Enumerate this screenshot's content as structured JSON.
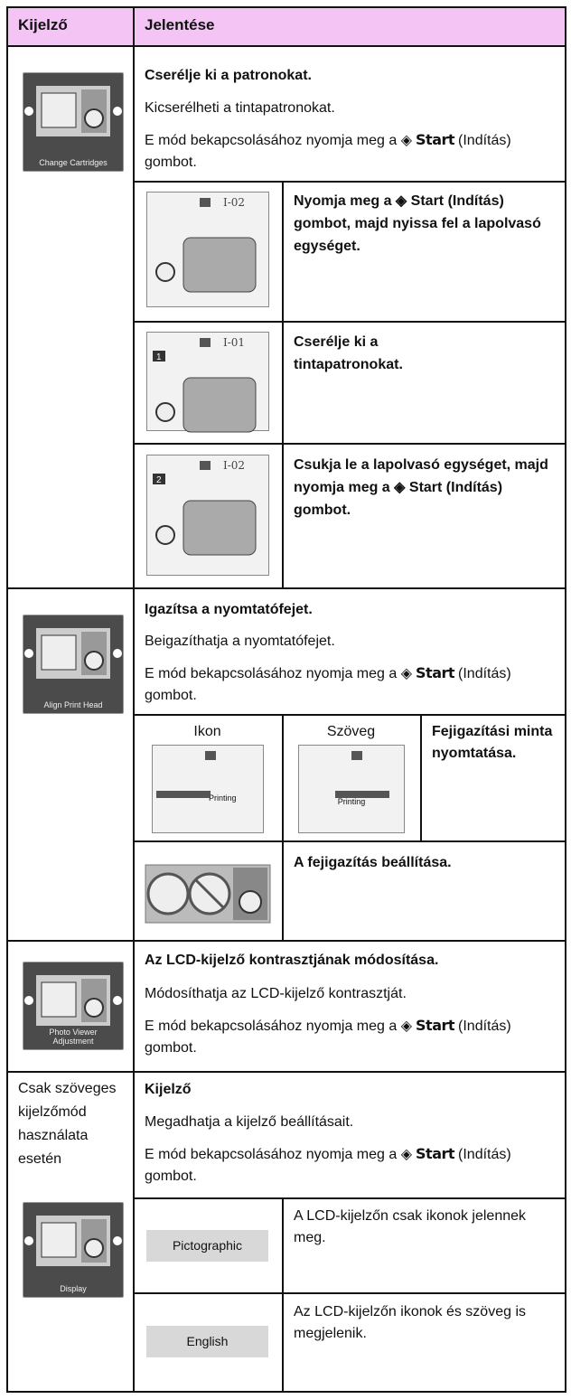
{
  "header": {
    "col1": "Kijelző",
    "col2": "Jelentése"
  },
  "sections": [
    {
      "icon_label": "Change Cartridges",
      "title": "Cserélje ki a patronokat.",
      "description": "Kicserélheti a tintapatronokat.",
      "instruction": {
        "before": "E mód bekapcsolásához nyomja meg a ◈",
        "button": "Start",
        "after": "(Indítás) gombot."
      },
      "steps": [
        {
          "screen_code": "I-02",
          "text": "Nyomja meg a ◈ Start (Indítás) gombot, majd nyissa fel a lapolvasó egységet."
        },
        {
          "screen_code": "I-01",
          "step": "1",
          "text": "Cserélje ki a tintapatronokat."
        },
        {
          "screen_code": "I-02",
          "step": "2",
          "text": "Csukja le a lapolvasó egységet, majd nyomja meg a ◈ Start (Indítás) gombot."
        }
      ]
    },
    {
      "icon_label": "Align Print Head",
      "title": "Igazítsa a nyomtatófejet.",
      "description": "Beigazíthatja a nyomtatófejet.",
      "instruction": {
        "before": "E mód bekapcsolásához nyomja meg a ◈",
        "button": "Start",
        "after": "(Indítás) gombot."
      },
      "modes": [
        {
          "name": "Ikon",
          "screen_text": "Printing"
        },
        {
          "name": "Szöveg",
          "screen_text": "Printing"
        }
      ],
      "mode_text": "Fejigazítási minta nyomtatása.",
      "adjust_text": "A fejigazítás beállítása."
    },
    {
      "icon_label": "Photo Viewer Adjustment",
      "title": "Az LCD-kijelző kontrasztjának módosítása.",
      "description": "Módosíthatja az LCD-kijelző kontrasztját.",
      "instruction": {
        "before": "E mód bekapcsolásához nyomja meg a ◈",
        "button": "Start",
        "after": "(Indítás) gombot."
      }
    },
    {
      "note": "Csak szöveges kijelzőmód használata esetén",
      "icon_label": "Display",
      "title": "Kijelző",
      "description": "Megadhatja a kijelző beállításait.",
      "instruction": {
        "before": "E mód bekapcsolásához nyomja meg a ◈",
        "button": "Start",
        "after": "(Indítás) gombot."
      },
      "options": [
        {
          "button": "Pictographic",
          "text": "A LCD-kijelzőn csak ikonok jelennek meg."
        },
        {
          "button": "English",
          "text": "Az LCD-kijelzőn ikonok és szöveg is megjelenik."
        }
      ]
    }
  ]
}
